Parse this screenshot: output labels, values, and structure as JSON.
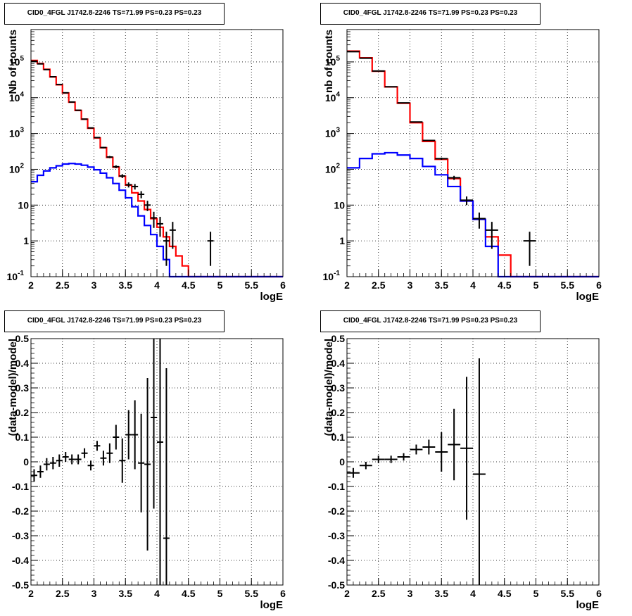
{
  "chart_data": [
    {
      "type": "line",
      "title": "CID0_4FGL J1742.8-2246 TS=71.99 PS=0.23 PS=0.23",
      "xlabel": "logE",
      "ylabel": "Nb of counts",
      "yscale": "log",
      "xlim": [
        2,
        6
      ],
      "ylim": [
        0.1,
        800000
      ],
      "grid": true,
      "x_ticks": [
        "2",
        "2.5",
        "3",
        "3.5",
        "4",
        "4.5",
        "5",
        "5.5",
        "6"
      ],
      "y_ticks": [
        {
          "label": "10",
          "exp": "-1",
          "value": 0.1
        },
        {
          "label": "1",
          "exp": "",
          "value": 1
        },
        {
          "label": "10",
          "exp": "",
          "value": 10
        },
        {
          "label": "10",
          "exp": "2",
          "value": 100
        },
        {
          "label": "10",
          "exp": "3",
          "value": 1000
        },
        {
          "label": "10",
          "exp": "4",
          "value": 10000
        },
        {
          "label": "10",
          "exp": "5",
          "value": 100000
        }
      ],
      "bin_edges": [
        2.0,
        2.1,
        2.2,
        2.3,
        2.4,
        2.5,
        2.6,
        2.7,
        2.8,
        2.9,
        3.0,
        3.1,
        3.2,
        3.3,
        3.4,
        3.5,
        3.6,
        3.7,
        3.8,
        3.9,
        4.0,
        4.1,
        4.2,
        4.3,
        4.4,
        4.5,
        4.6,
        4.7,
        4.8,
        4.9,
        5.0,
        5.1,
        5.2,
        5.3,
        5.4,
        5.5,
        5.6,
        5.7,
        5.8,
        5.9,
        6.0
      ],
      "series": [
        {
          "color": "#ff0000",
          "kind": "step",
          "values": [
            110000,
            90000,
            62000,
            38000,
            23000,
            13500,
            7500,
            4400,
            2500,
            1400,
            750,
            400,
            215,
            115,
            64,
            36,
            22,
            13,
            7.5,
            4.2,
            2.4,
            1.3,
            0.7,
            0.38,
            0.2,
            0.1,
            0.1,
            0.1,
            0.1,
            0.1,
            0.1,
            0.1,
            0.1,
            0.1,
            0.1,
            0.1,
            0.1,
            0.1,
            0.1,
            0.1
          ]
        },
        {
          "color": "#0000ff",
          "kind": "step",
          "values": [
            45,
            68,
            90,
            110,
            125,
            140,
            145,
            140,
            130,
            115,
            97,
            78,
            58,
            40,
            26,
            16,
            9,
            5,
            2.7,
            1.5,
            0.7,
            0.3,
            0.1,
            0.1,
            0.1,
            0.1,
            0.1,
            0.1,
            0.1,
            0.1,
            0.1,
            0.1,
            0.1,
            0.1,
            0.1,
            0.1,
            0.1,
            0.1,
            0.1,
            0.1
          ]
        },
        {
          "color": "#000000",
          "kind": "points",
          "points": [
            {
              "x": 2.05,
              "y": 105000,
              "err": 325
            },
            {
              "x": 2.15,
              "y": 88000,
              "err": 300
            },
            {
              "x": 2.25,
              "y": 61000,
              "err": 247
            },
            {
              "x": 2.35,
              "y": 38500,
              "err": 196
            },
            {
              "x": 2.45,
              "y": 23300,
              "err": 152
            },
            {
              "x": 2.55,
              "y": 13700,
              "err": 117
            },
            {
              "x": 2.65,
              "y": 7560,
              "err": 87
            },
            {
              "x": 2.75,
              "y": 4460,
              "err": 67
            },
            {
              "x": 2.85,
              "y": 2520,
              "err": 50
            },
            {
              "x": 2.95,
              "y": 1430,
              "err": 38
            },
            {
              "x": 3.05,
              "y": 770,
              "err": 28
            },
            {
              "x": 3.15,
              "y": 405,
              "err": 20
            },
            {
              "x": 3.25,
              "y": 220,
              "err": 15
            },
            {
              "x": 3.35,
              "y": 118,
              "err": 11
            },
            {
              "x": 3.45,
              "y": 65,
              "err": 8
            },
            {
              "x": 3.55,
              "y": 37,
              "err": 6
            },
            {
              "x": 3.65,
              "y": 33,
              "err": 5.8
            },
            {
              "x": 3.75,
              "y": 20,
              "err": 4.5
            },
            {
              "x": 3.85,
              "y": 10,
              "err": 3.2
            },
            {
              "x": 3.95,
              "y": 4.4,
              "err": 2.1
            },
            {
              "x": 4.05,
              "y": 3,
              "err": 1.7
            },
            {
              "x": 4.15,
              "y": 1,
              "err": 0.8
            },
            {
              "x": 4.25,
              "y": 2,
              "err": 1.4
            },
            {
              "x": 4.85,
              "y": 1,
              "err": 0.8
            }
          ]
        }
      ]
    },
    {
      "type": "line",
      "title": "CID0_4FGL J1742.8-2246 TS=71.99 PS=0.23 PS=0.23",
      "xlabel": "logE",
      "ylabel": "nb of counts",
      "yscale": "log",
      "xlim": [
        2,
        6
      ],
      "ylim": [
        0.1,
        800000
      ],
      "grid": true,
      "x_ticks": [
        "2",
        "2.5",
        "3",
        "3.5",
        "4",
        "4.5",
        "5",
        "5.5",
        "6"
      ],
      "y_ticks": [
        {
          "label": "10",
          "exp": "-1",
          "value": 0.1
        },
        {
          "label": "1",
          "exp": "",
          "value": 1
        },
        {
          "label": "10",
          "exp": "",
          "value": 10
        },
        {
          "label": "10",
          "exp": "2",
          "value": 100
        },
        {
          "label": "10",
          "exp": "3",
          "value": 1000
        },
        {
          "label": "10",
          "exp": "4",
          "value": 10000
        },
        {
          "label": "10",
          "exp": "5",
          "value": 100000
        }
      ],
      "bin_edges": [
        2.0,
        2.2,
        2.4,
        2.6,
        2.8,
        3.0,
        3.2,
        3.4,
        3.6,
        3.8,
        4.0,
        4.2,
        4.4,
        4.6,
        4.8,
        5.0,
        5.2,
        5.4,
        5.6,
        5.8,
        6.0
      ],
      "series": [
        {
          "color": "#ff0000",
          "kind": "step",
          "values": [
            200000,
            130000,
            55000,
            20000,
            7000,
            2000,
            600,
            190,
            55,
            13,
            4,
            1.3,
            0.4,
            0.1,
            0.1,
            0.1,
            0.1,
            0.1,
            0.1,
            0.1
          ]
        },
        {
          "color": "#0000ff",
          "kind": "step",
          "values": [
            110,
            200,
            270,
            290,
            250,
            200,
            120,
            70,
            33,
            13,
            4,
            0.7,
            0.1,
            0.1,
            0.1,
            0.1,
            0.1,
            0.1,
            0.1,
            0.1
          ]
        },
        {
          "color": "#000000",
          "kind": "points",
          "points": [
            {
              "x": 2.1,
              "y": 193000,
              "err": 440
            },
            {
              "x": 2.3,
              "y": 127000,
              "err": 356
            },
            {
              "x": 2.5,
              "y": 55600,
              "err": 236
            },
            {
              "x": 2.7,
              "y": 20200,
              "err": 142
            },
            {
              "x": 2.9,
              "y": 7150,
              "err": 85
            },
            {
              "x": 3.1,
              "y": 2100,
              "err": 46
            },
            {
              "x": 3.3,
              "y": 640,
              "err": 25
            },
            {
              "x": 3.5,
              "y": 198,
              "err": 14
            },
            {
              "x": 3.7,
              "y": 58,
              "err": 7.6
            },
            {
              "x": 3.9,
              "y": 13.7,
              "err": 3.7
            },
            {
              "x": 4.1,
              "y": 4.2,
              "err": 2
            },
            {
              "x": 4.3,
              "y": 2,
              "err": 1.4
            },
            {
              "x": 4.9,
              "y": 1,
              "err": 0.8
            }
          ]
        }
      ]
    },
    {
      "type": "scatter",
      "title": "CID0_4FGL J1742.8-2246 TS=71.99 PS=0.23 PS=0.23",
      "xlabel": "logE",
      "ylabel": "(data-model)/model",
      "yscale": "linear",
      "xlim": [
        2,
        6
      ],
      "ylim": [
        -0.5,
        0.5
      ],
      "grid": true,
      "x_ticks": [
        "2",
        "2.5",
        "3",
        "3.5",
        "4",
        "4.5",
        "5",
        "5.5",
        "6"
      ],
      "y_ticks": [
        {
          "label": "-0.5",
          "value": -0.5
        },
        {
          "label": "-0.4",
          "value": -0.4
        },
        {
          "label": "-0.3",
          "value": -0.3
        },
        {
          "label": "-0.2",
          "value": -0.2
        },
        {
          "label": "-0.1",
          "value": -0.1
        },
        {
          "label": "0",
          "value": 0
        },
        {
          "label": "0.1",
          "value": 0.1
        },
        {
          "label": "0.2",
          "value": 0.2
        },
        {
          "label": "0.3",
          "value": 0.3
        },
        {
          "label": "0.4",
          "value": 0.4
        },
        {
          "label": "0.5",
          "value": 0.5
        }
      ],
      "half_width": 0.05,
      "series": [
        {
          "color": "#000000",
          "kind": "points",
          "points": [
            {
              "x": 2.05,
              "y": -0.055,
              "err": 0.025
            },
            {
              "x": 2.15,
              "y": -0.04,
              "err": 0.025
            },
            {
              "x": 2.25,
              "y": -0.01,
              "err": 0.025
            },
            {
              "x": 2.35,
              "y": -0.005,
              "err": 0.025
            },
            {
              "x": 2.45,
              "y": 0.005,
              "err": 0.025
            },
            {
              "x": 2.55,
              "y": 0.02,
              "err": 0.02
            },
            {
              "x": 2.65,
              "y": 0.01,
              "err": 0.02
            },
            {
              "x": 2.75,
              "y": 0.01,
              "err": 0.02
            },
            {
              "x": 2.85,
              "y": 0.035,
              "err": 0.02
            },
            {
              "x": 2.95,
              "y": -0.015,
              "err": 0.02
            },
            {
              "x": 3.05,
              "y": 0.065,
              "err": 0.02
            },
            {
              "x": 3.15,
              "y": 0.015,
              "err": 0.03
            },
            {
              "x": 3.25,
              "y": 0.035,
              "err": 0.04
            },
            {
              "x": 3.35,
              "y": 0.1,
              "err": 0.05
            },
            {
              "x": 3.45,
              "y": 0.005,
              "err": 0.09
            },
            {
              "x": 3.55,
              "y": 0.11,
              "err": 0.1
            },
            {
              "x": 3.65,
              "y": 0.11,
              "err": 0.14
            },
            {
              "x": 3.75,
              "y": -0.005,
              "err": 0.2
            },
            {
              "x": 3.85,
              "y": -0.01,
              "err": 0.35
            },
            {
              "x": 3.95,
              "y": 0.18,
              "err": 0.37
            },
            {
              "x": 4.05,
              "y": 0.08,
              "err": 0.58
            },
            {
              "x": 4.15,
              "y": -0.31,
              "err": 0.69
            }
          ]
        }
      ]
    },
    {
      "type": "scatter",
      "title": "CID0_4FGL J1742.8-2246 TS=71.99 PS=0.23 PS=0.23",
      "xlabel": "logE",
      "ylabel": "(data-model)/model",
      "yscale": "linear",
      "xlim": [
        2,
        6
      ],
      "ylim": [
        -0.5,
        0.5
      ],
      "grid": true,
      "x_ticks": [
        "2",
        "2.5",
        "3",
        "3.5",
        "4",
        "4.5",
        "5",
        "5.5",
        "6"
      ],
      "y_ticks": [
        {
          "label": "-0.5",
          "value": -0.5
        },
        {
          "label": "-0.4",
          "value": -0.4
        },
        {
          "label": "-0.3",
          "value": -0.3
        },
        {
          "label": "-0.2",
          "value": -0.2
        },
        {
          "label": "-0.1",
          "value": -0.1
        },
        {
          "label": "0",
          "value": 0
        },
        {
          "label": "0.1",
          "value": 0.1
        },
        {
          "label": "0.2",
          "value": 0.2
        },
        {
          "label": "0.3",
          "value": 0.3
        },
        {
          "label": "0.4",
          "value": 0.4
        },
        {
          "label": "0.5",
          "value": 0.5
        }
      ],
      "half_width": 0.1,
      "series": [
        {
          "color": "#000000",
          "kind": "points",
          "points": [
            {
              "x": 2.1,
              "y": -0.045,
              "err": 0.02
            },
            {
              "x": 2.3,
              "y": -0.015,
              "err": 0.015
            },
            {
              "x": 2.5,
              "y": 0.01,
              "err": 0.015
            },
            {
              "x": 2.7,
              "y": 0.01,
              "err": 0.015
            },
            {
              "x": 2.9,
              "y": 0.02,
              "err": 0.015
            },
            {
              "x": 3.1,
              "y": 0.05,
              "err": 0.02
            },
            {
              "x": 3.3,
              "y": 0.06,
              "err": 0.03
            },
            {
              "x": 3.5,
              "y": 0.04,
              "err": 0.08
            },
            {
              "x": 3.7,
              "y": 0.07,
              "err": 0.145
            },
            {
              "x": 3.9,
              "y": 0.055,
              "err": 0.29
            },
            {
              "x": 4.1,
              "y": -0.05,
              "err": 0.47
            }
          ]
        }
      ]
    }
  ]
}
